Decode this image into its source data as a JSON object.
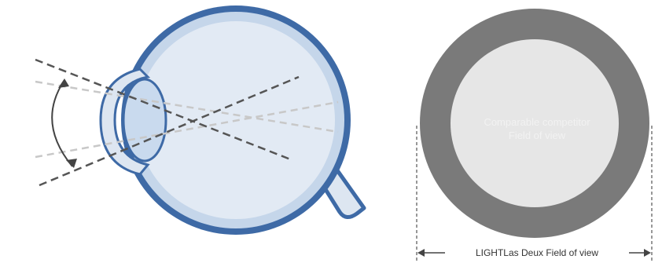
{
  "diagram": {
    "competitor_label_line1": "Comparable competitor",
    "competitor_label_line2": "Field of view",
    "product_fov_label": "LIGHTLas Deux Field of view"
  },
  "colors": {
    "eye_outer": "#3e6aa6",
    "eye_fill": "#dde6f1",
    "eye_inner_band": "#c5d6ea",
    "lens_fill": "#c9daee",
    "lens_stroke": "#3e6aa6",
    "dash_dark": "#555555",
    "dash_light": "#c8c8c8",
    "outer_ring": "#7a7a7a",
    "inner_disc": "#e6e6e6",
    "dimension_line": "#444444"
  }
}
